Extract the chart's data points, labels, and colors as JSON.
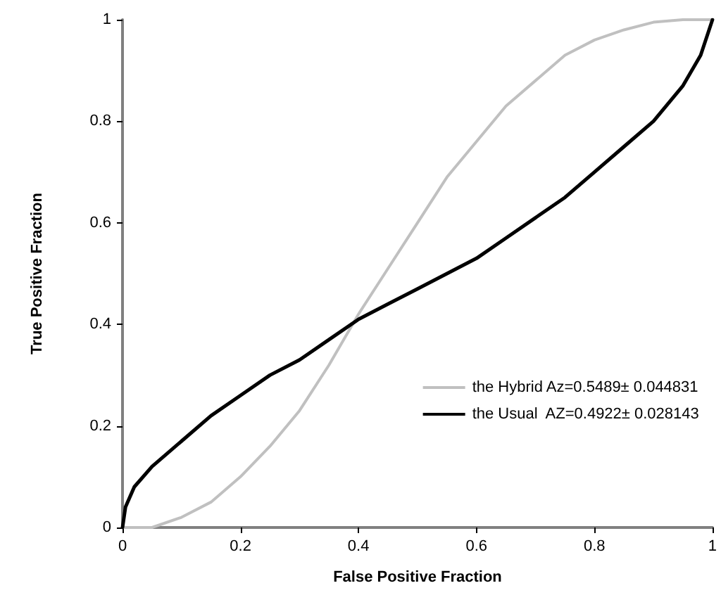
{
  "chart_data": {
    "type": "line",
    "xlabel": "False Positive Fraction",
    "ylabel": "True Positive Fraction",
    "xlim": [
      0,
      1
    ],
    "xticks": [
      0,
      0.2,
      0.4,
      0.6,
      0.8,
      1
    ],
    "ylim": [
      0,
      1
    ],
    "yticks": [
      0,
      0.2,
      0.4,
      0.6,
      0.8,
      1
    ],
    "grid": false,
    "legend": "right",
    "marker": "none",
    "line_style": "solid",
    "series": [
      {
        "name": "the Hybrid Az=0.5489± 0.044831",
        "color": "#c0c0c0",
        "x": [
          0,
          0.05,
          0.1,
          0.15,
          0.2,
          0.25,
          0.3,
          0.35,
          0.4,
          0.45,
          0.5,
          0.55,
          0.6,
          0.65,
          0.7,
          0.75,
          0.8,
          0.85,
          0.9,
          0.95,
          1
        ],
        "values": [
          0,
          0,
          0.02,
          0.05,
          0.1,
          0.16,
          0.23,
          0.32,
          0.42,
          0.51,
          0.6,
          0.69,
          0.76,
          0.83,
          0.88,
          0.93,
          0.96,
          0.98,
          0.995,
          1,
          1
        ]
      },
      {
        "name": "the Usual  AZ=0.4922± 0.028143",
        "color": "#000000",
        "x": [
          0,
          0.005,
          0.02,
          0.05,
          0.1,
          0.15,
          0.2,
          0.25,
          0.3,
          0.35,
          0.4,
          0.45,
          0.5,
          0.55,
          0.6,
          0.65,
          0.7,
          0.75,
          0.8,
          0.85,
          0.9,
          0.95,
          0.98,
          1
        ],
        "values": [
          0,
          0.04,
          0.08,
          0.12,
          0.17,
          0.22,
          0.26,
          0.3,
          0.33,
          0.37,
          0.41,
          0.44,
          0.47,
          0.5,
          0.53,
          0.57,
          0.61,
          0.65,
          0.7,
          0.75,
          0.8,
          0.87,
          0.93,
          1
        ]
      }
    ]
  }
}
